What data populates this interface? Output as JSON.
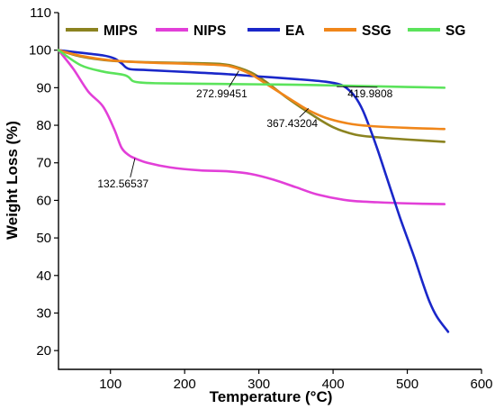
{
  "chart_data": {
    "type": "line",
    "title": "",
    "xlabel": "Temperature (°C)",
    "ylabel": "Weight Loss (%)",
    "xlim": [
      30,
      600
    ],
    "ylim": [
      15,
      110
    ],
    "xticks": [
      100,
      200,
      300,
      400,
      500,
      600
    ],
    "yticks": [
      20,
      30,
      40,
      50,
      60,
      70,
      80,
      90,
      100,
      110
    ],
    "grid": false,
    "legend_position": "top",
    "series": [
      {
        "name": "MIPS",
        "color": "#8b8320",
        "x": [
          30,
          60,
          100,
          150,
          200,
          250,
          270,
          290,
          310,
          340,
          370,
          400,
          430,
          460,
          500,
          550
        ],
        "y": [
          100,
          98.3,
          97.2,
          96.8,
          96.6,
          96.3,
          95.5,
          94,
          91.5,
          87,
          83,
          79.5,
          77.5,
          76.8,
          76.2,
          75.6
        ]
      },
      {
        "name": "NIPS",
        "color": "#e23fd8",
        "x": [
          30,
          50,
          70,
          90,
          105,
          115,
          125,
          133,
          150,
          180,
          220,
          260,
          290,
          320,
          350,
          380,
          420,
          460,
          500,
          550
        ],
        "y": [
          100,
          95,
          89,
          85,
          79,
          74,
          72,
          71.2,
          70,
          68.8,
          68,
          67.7,
          67,
          65.5,
          63.5,
          61.5,
          60,
          59.5,
          59.2,
          59
        ]
      },
      {
        "name": "EA",
        "color": "#1a27c9",
        "x": [
          30,
          60,
          90,
          105,
          115,
          125,
          150,
          200,
          250,
          300,
          350,
          390,
          410,
          420,
          430,
          440,
          450,
          460,
          470,
          480,
          490,
          500,
          510,
          520,
          530,
          540,
          555
        ],
        "y": [
          100,
          99.3,
          98.6,
          97.8,
          96.5,
          95,
          94.7,
          94.2,
          93.7,
          93,
          92.3,
          91.6,
          90.8,
          89.6,
          87.5,
          84,
          79,
          73.5,
          67.5,
          61.5,
          55.5,
          50,
          44.5,
          38.5,
          33,
          29,
          25
        ]
      },
      {
        "name": "SSG",
        "color": "#f0861a",
        "x": [
          30,
          60,
          100,
          150,
          200,
          250,
          265,
          273,
          290,
          310,
          330,
          350,
          367,
          390,
          420,
          450,
          500,
          550
        ],
        "y": [
          100,
          98.5,
          97.3,
          96.7,
          96.4,
          96,
          95.5,
          95,
          93.5,
          91,
          88.5,
          86,
          84,
          82,
          80.5,
          79.8,
          79.3,
          79
        ]
      },
      {
        "name": "SG",
        "color": "#5be35b",
        "x": [
          30,
          60,
          90,
          120,
          130,
          140,
          160,
          200,
          250,
          300,
          350,
          400,
          450,
          500,
          550
        ],
        "y": [
          100,
          96,
          94.3,
          93.3,
          91.8,
          91.4,
          91.2,
          91.1,
          91,
          90.9,
          90.8,
          90.6,
          90.4,
          90.2,
          90
        ]
      }
    ],
    "annotations": [
      {
        "text": "132.56537",
        "x": 133,
        "y": 71.2,
        "label_x": 117,
        "label_y": 63.5
      },
      {
        "text": "272.99451",
        "x": 273,
        "y": 94.5,
        "label_x": 250,
        "label_y": 87.5
      },
      {
        "text": "367.43204",
        "x": 367,
        "y": 84.5,
        "label_x": 345,
        "label_y": 79.5
      },
      {
        "text": "419.9808",
        "x": 405,
        "y": 90.3,
        "label_x": 450,
        "label_y": 87.5
      }
    ]
  }
}
